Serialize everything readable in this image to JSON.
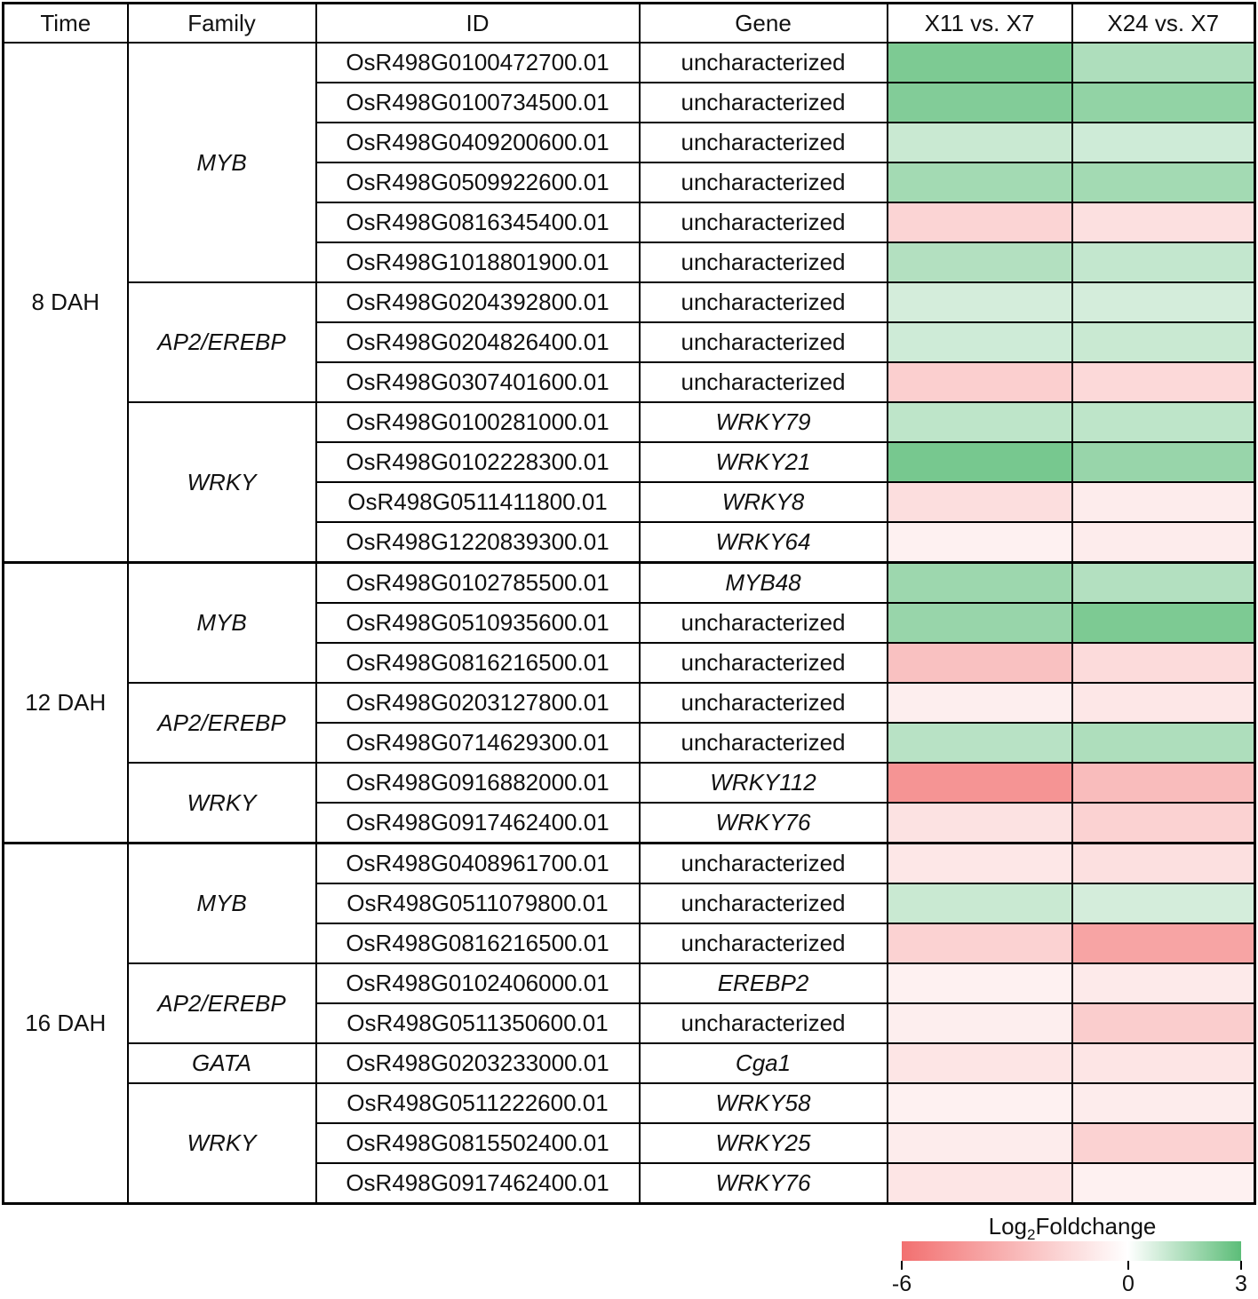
{
  "chart_data": {
    "type": "heatmap",
    "headers": {
      "time": "Time",
      "family": "Family",
      "id": "ID",
      "gene": "Gene",
      "col1": "X11 vs. X7",
      "col2": "X24 vs. X7"
    },
    "color_scale": {
      "title_prefix": "Log",
      "title_sub": "2",
      "title_suffix": "Foldchange",
      "min": -6,
      "mid": 0,
      "max": 3,
      "min_label": "-6",
      "mid_label": "0",
      "max_label": "3",
      "min_color": "#f27070",
      "mid_color": "#ffffff",
      "max_color": "#5cbd78"
    },
    "groups": [
      {
        "time": "8 DAH",
        "families": [
          {
            "family": "MYB",
            "rows": [
              {
                "id": "OsR498G0100472700.01",
                "gene": "uncharacterized",
                "gene_italic": false,
                "values": [
                  2.4,
                  1.5
                ]
              },
              {
                "id": "OsR498G0100734500.01",
                "gene": "uncharacterized",
                "gene_italic": false,
                "values": [
                  2.3,
                  2.0
                ]
              },
              {
                "id": "OsR498G0409200600.01",
                "gene": "uncharacterized",
                "gene_italic": false,
                "values": [
                  1.0,
                  0.9
                ]
              },
              {
                "id": "OsR498G0509922600.01",
                "gene": "uncharacterized",
                "gene_italic": false,
                "values": [
                  1.7,
                  1.7
                ]
              },
              {
                "id": "OsR498G0816345400.01",
                "gene": "uncharacterized",
                "gene_italic": false,
                "values": [
                  -1.8,
                  -1.3
                ]
              },
              {
                "id": "OsR498G1018801900.01",
                "gene": "uncharacterized",
                "gene_italic": false,
                "values": [
                  1.4,
                  1.1
                ]
              }
            ]
          },
          {
            "family": "AP2/EREBP",
            "rows": [
              {
                "id": "OsR498G0204392800.01",
                "gene": "uncharacterized",
                "gene_italic": false,
                "values": [
                  0.8,
                  0.8
                ]
              },
              {
                "id": "OsR498G0204826400.01",
                "gene": "uncharacterized",
                "gene_italic": false,
                "values": [
                  0.9,
                  1.0
                ]
              },
              {
                "id": "OsR498G0307401600.01",
                "gene": "uncharacterized",
                "gene_italic": false,
                "values": [
                  -2.0,
                  -1.6
                ]
              }
            ]
          },
          {
            "family": "WRKY",
            "rows": [
              {
                "id": "OsR498G0100281000.01",
                "gene": "WRKY79",
                "gene_italic": true,
                "values": [
                  1.2,
                  1.2
                ]
              },
              {
                "id": "OsR498G0102228300.01",
                "gene": "WRKY21",
                "gene_italic": true,
                "values": [
                  2.5,
                  1.9
                ]
              },
              {
                "id": "OsR498G0511411800.01",
                "gene": "WRKY8",
                "gene_italic": true,
                "values": [
                  -1.4,
                  -0.8
                ]
              },
              {
                "id": "OsR498G1220839300.01",
                "gene": "WRKY64",
                "gene_italic": true,
                "values": [
                  -0.6,
                  -0.8
                ]
              }
            ]
          }
        ]
      },
      {
        "time": "12 DAH",
        "families": [
          {
            "family": "MYB",
            "rows": [
              {
                "id": "OsR498G0102785500.01",
                "gene": "MYB48",
                "gene_italic": true,
                "values": [
                  1.8,
                  1.4
                ]
              },
              {
                "id": "OsR498G0510935600.01",
                "gene": "uncharacterized",
                "gene_italic": false,
                "values": [
                  1.9,
                  2.4
                ]
              },
              {
                "id": "OsR498G0816216500.01",
                "gene": "uncharacterized",
                "gene_italic": false,
                "values": [
                  -2.6,
                  -1.5
                ]
              }
            ]
          },
          {
            "family": "AP2/EREBP",
            "rows": [
              {
                "id": "OsR498G0203127800.01",
                "gene": "uncharacterized",
                "gene_italic": false,
                "values": [
                  -0.7,
                  -1.0
                ]
              },
              {
                "id": "OsR498G0714629300.01",
                "gene": "uncharacterized",
                "gene_italic": false,
                "values": [
                  1.3,
                  1.5
                ]
              }
            ]
          },
          {
            "family": "WRKY",
            "rows": [
              {
                "id": "OsR498G0916882000.01",
                "gene": "WRKY112",
                "gene_italic": true,
                "values": [
                  -4.5,
                  -2.8
                ]
              },
              {
                "id": "OsR498G0917462400.01",
                "gene": "WRKY76",
                "gene_italic": true,
                "values": [
                  -1.2,
                  -1.9
                ]
              }
            ]
          }
        ]
      },
      {
        "time": "16 DAH",
        "families": [
          {
            "family": "MYB",
            "rows": [
              {
                "id": "OsR498G0408961700.01",
                "gene": "uncharacterized",
                "gene_italic": false,
                "values": [
                  -1.0,
                  -1.3
                ]
              },
              {
                "id": "OsR498G0511079800.01",
                "gene": "uncharacterized",
                "gene_italic": false,
                "values": [
                  1.0,
                  0.8
                ]
              },
              {
                "id": "OsR498G0816216500.01",
                "gene": "uncharacterized",
                "gene_italic": false,
                "values": [
                  -1.9,
                  -3.8
                ]
              }
            ]
          },
          {
            "family": "AP2/EREBP",
            "rows": [
              {
                "id": "OsR498G0102406000.01",
                "gene": "EREBP2",
                "gene_italic": true,
                "values": [
                  -0.6,
                  -0.9
                ]
              },
              {
                "id": "OsR498G0511350600.01",
                "gene": "uncharacterized",
                "gene_italic": false,
                "values": [
                  -0.7,
                  -2.1
                ]
              }
            ]
          },
          {
            "family": "GATA",
            "rows": [
              {
                "id": "OsR498G0203233000.01",
                "gene": "Cga1",
                "gene_italic": true,
                "values": [
                  -1.1,
                  -1.1
                ]
              }
            ]
          },
          {
            "family": "WRKY",
            "rows": [
              {
                "id": "OsR498G0511222600.01",
                "gene": "WRKY58",
                "gene_italic": true,
                "values": [
                  -0.6,
                  -0.8
                ]
              },
              {
                "id": "OsR498G0815502400.01",
                "gene": "WRKY25",
                "gene_italic": true,
                "values": [
                  -0.8,
                  -1.9
                ]
              },
              {
                "id": "OsR498G0917462400.01",
                "gene": "WRKY76",
                "gene_italic": true,
                "values": [
                  -1.1,
                  -0.6
                ]
              }
            ]
          }
        ]
      }
    ]
  }
}
